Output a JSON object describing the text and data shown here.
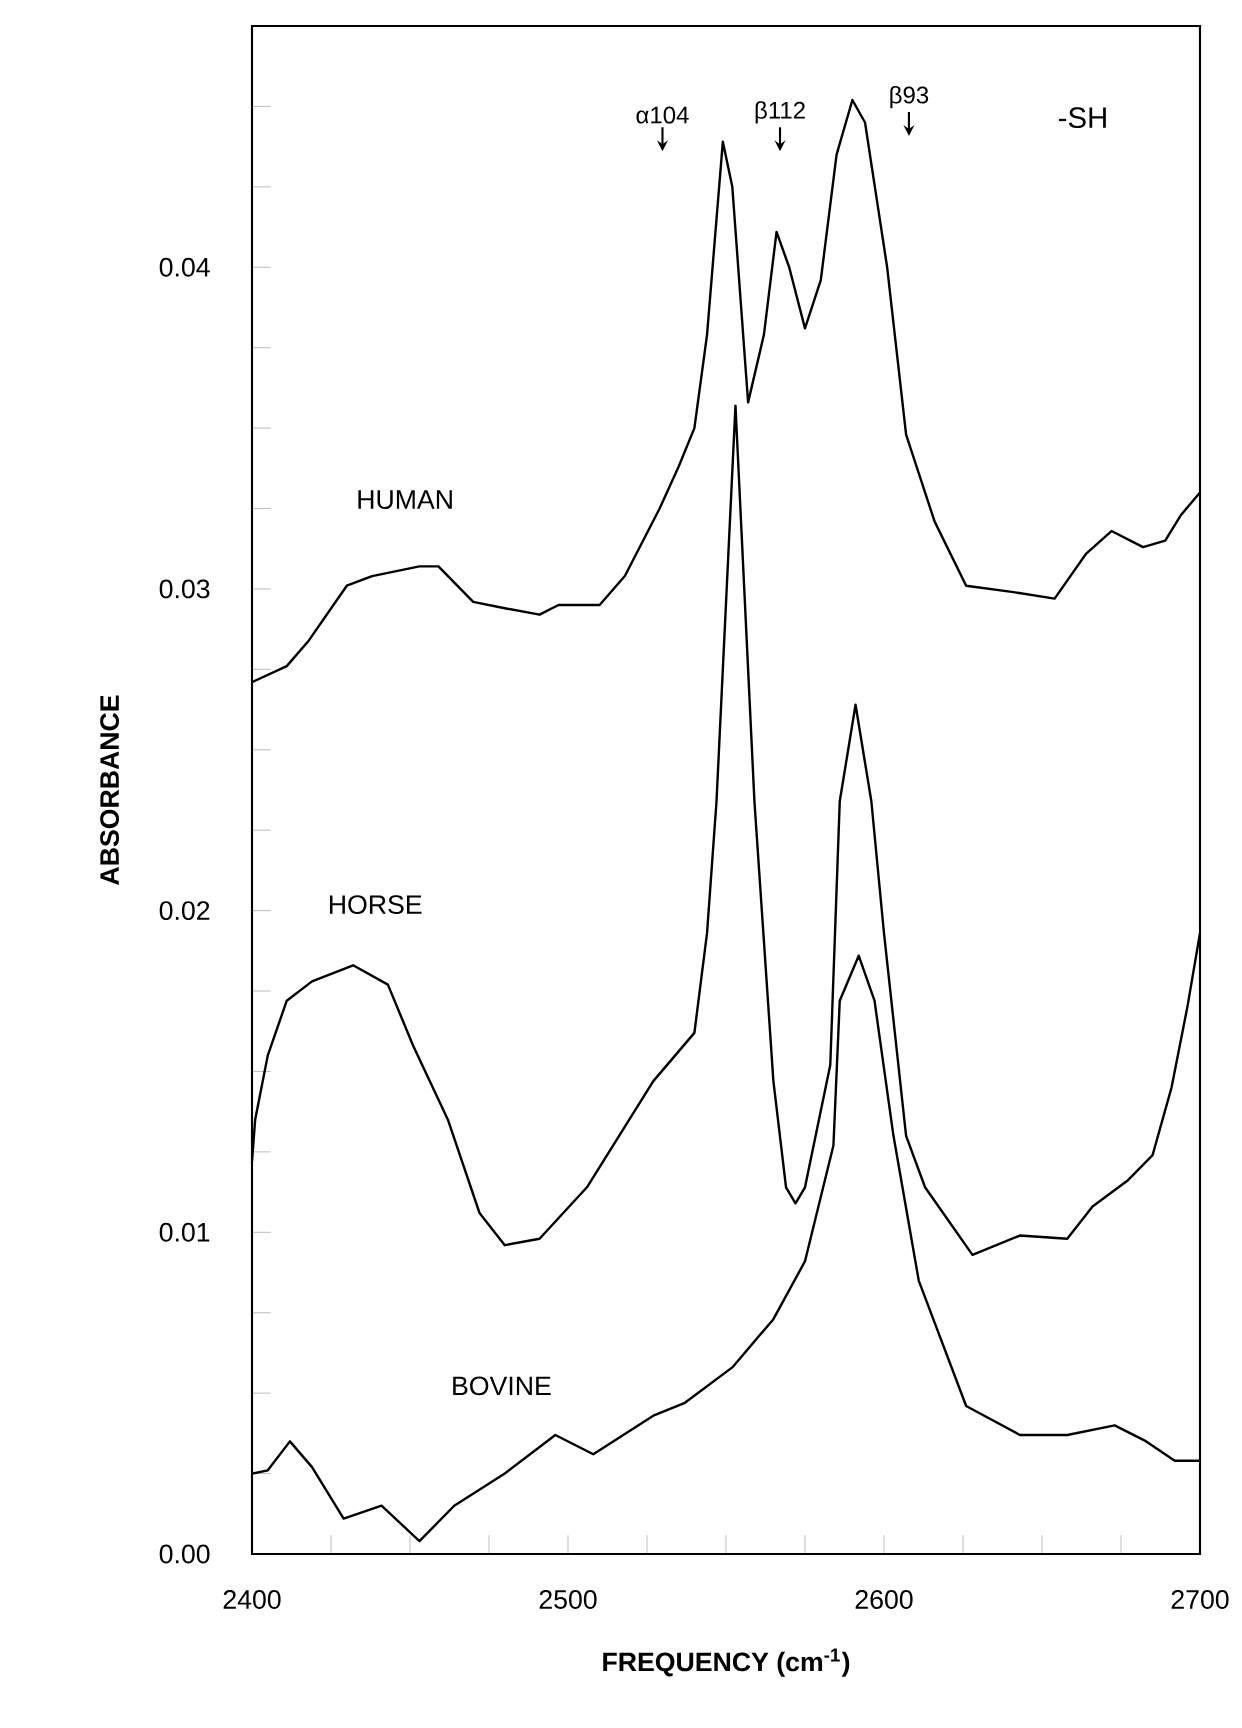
{
  "chart_data": {
    "type": "line",
    "xlabel": "FREQUENCY (cm$^{-1}$)",
    "ylabel": "ABSORBANCE",
    "xlim": [
      2400,
      2700
    ],
    "ylim": [
      0,
      0.0475
    ],
    "xticks": [
      2400,
      {
        "value": 2425,
        "label": null
      },
      {
        "value": 2450,
        "label": null
      },
      {
        "value": 2475,
        "label": null
      },
      2500,
      {
        "value": 2525,
        "label": null
      },
      {
        "value": 2550,
        "label": null
      },
      {
        "value": 2575,
        "label": null
      },
      2600,
      {
        "value": 2625,
        "label": null
      },
      {
        "value": 2650,
        "label": null
      },
      {
        "value": 2675,
        "label": null
      },
      2700
    ],
    "yticks": [
      {
        "value": 0,
        "label": "0.00"
      },
      {
        "value": 0.0025,
        "label": null
      },
      {
        "value": 0.005,
        "label": null
      },
      {
        "value": 0.0075,
        "label": null
      },
      {
        "value": 0.01,
        "label": "0.01"
      },
      {
        "value": 0.0125,
        "label": null
      },
      {
        "value": 0.015,
        "label": null
      },
      {
        "value": 0.0175,
        "label": null
      },
      {
        "value": 0.02,
        "label": "0.02"
      },
      {
        "value": 0.0225,
        "label": null
      },
      {
        "value": 0.025,
        "label": null
      },
      {
        "value": 0.0275,
        "label": null
      },
      {
        "value": 0.03,
        "label": "0.03"
      },
      {
        "value": 0.0325,
        "label": null
      },
      {
        "value": 0.035,
        "label": null
      },
      {
        "value": 0.0375,
        "label": null
      },
      {
        "value": 0.04,
        "label": "0.04"
      },
      {
        "value": 0.0425,
        "label": null
      },
      {
        "value": 0.045,
        "label": null
      }
    ],
    "series": [
      {
        "name": "HUMAN",
        "color": "#000000",
        "x": [
          2400,
          2411,
          2418,
          2430,
          2438,
          2453,
          2459,
          2470,
          2480,
          2491,
          2497,
          2510,
          2518,
          2529,
          2535,
          2540,
          2544,
          2549,
          2552,
          2557,
          2562,
          2566,
          2570,
          2575,
          2580,
          2585,
          2590,
          2594,
          2601,
          2607,
          2616,
          2626,
          2641,
          2654,
          2664,
          2672,
          2682,
          2689,
          2694,
          2700
        ],
        "values": [
          0.0271,
          0.0276,
          0.0284,
          0.0301,
          0.0304,
          0.0307,
          0.0307,
          0.0296,
          0.0294,
          0.0292,
          0.0295,
          0.0295,
          0.0304,
          0.0325,
          0.0338,
          0.035,
          0.0379,
          0.0439,
          0.0425,
          0.0358,
          0.0379,
          0.0411,
          0.04,
          0.0381,
          0.0396,
          0.0435,
          0.0452,
          0.0445,
          0.04,
          0.0348,
          0.0321,
          0.0301,
          0.0299,
          0.0297,
          0.0311,
          0.0318,
          0.0313,
          0.0315,
          0.0323,
          0.033
        ]
      },
      {
        "name": "HORSE",
        "color": "#000000",
        "x": [
          2400,
          2401,
          2405,
          2411,
          2419,
          2432,
          2443,
          2451,
          2462,
          2472,
          2480,
          2491,
          2506,
          2527,
          2540,
          2544,
          2547,
          2553,
          2559,
          2565,
          2569,
          2572,
          2575,
          2583,
          2586,
          2591,
          2596,
          2600,
          2607,
          2613,
          2628,
          2643,
          2658,
          2666,
          2677,
          2685,
          2691,
          2696,
          2700
        ],
        "values": [
          0.0122,
          0.0135,
          0.0155,
          0.0172,
          0.0178,
          0.0183,
          0.0177,
          0.0158,
          0.0135,
          0.0106,
          0.0096,
          0.0098,
          0.0114,
          0.0147,
          0.0162,
          0.0193,
          0.0234,
          0.0357,
          0.0234,
          0.0147,
          0.0114,
          0.0109,
          0.0114,
          0.0152,
          0.0234,
          0.0264,
          0.0234,
          0.0193,
          0.013,
          0.0114,
          0.0093,
          0.0099,
          0.0098,
          0.0108,
          0.0116,
          0.0124,
          0.0145,
          0.017,
          0.0193
        ]
      },
      {
        "name": "BOVINE",
        "color": "#000000",
        "x": [
          2400,
          2405,
          2412,
          2419,
          2429,
          2441,
          2453,
          2464,
          2480,
          2496,
          2508,
          2527,
          2537,
          2552,
          2565,
          2575,
          2584,
          2586,
          2592,
          2597,
          2603,
          2611,
          2626,
          2643,
          2658,
          2673,
          2683,
          2692,
          2700
        ],
        "values": [
          0.0025,
          0.0026,
          0.0035,
          0.0027,
          0.0011,
          0.0015,
          0.0004,
          0.0015,
          0.0025,
          0.0037,
          0.0031,
          0.0043,
          0.0047,
          0.0058,
          0.0073,
          0.0091,
          0.0127,
          0.0172,
          0.0186,
          0.0172,
          0.013,
          0.0085,
          0.0046,
          0.0037,
          0.0037,
          0.004,
          0.0035,
          0.0029,
          0.0029
        ]
      }
    ],
    "annotations": [
      "α104",
      "β112",
      "β93",
      "-SH"
    ],
    "legend": false
  }
}
